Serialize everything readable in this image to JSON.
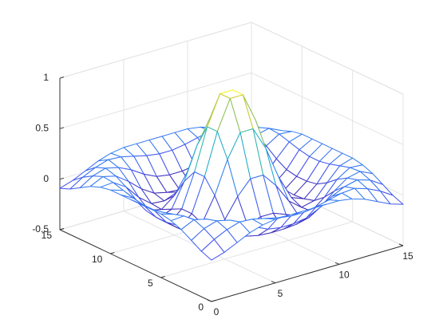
{
  "chart_data": {
    "type": "mesh",
    "x": [
      0,
      1,
      2,
      3,
      4,
      5,
      6,
      7,
      8,
      9,
      10,
      11,
      12,
      13,
      14,
      15
    ],
    "y": [
      0,
      1,
      2,
      3,
      4,
      5,
      6,
      7,
      8,
      9,
      10,
      11,
      12,
      13,
      14,
      15
    ],
    "z": [
      [
        -0.09,
        -0.05,
        0.01,
        0.07,
        0.11,
        0.13,
        0.13,
        0.13,
        0.13,
        0.13,
        0.13,
        0.11,
        0.07,
        0.01,
        -0.05,
        -0.09
      ],
      [
        -0.05,
        0.03,
        0.09,
        0.13,
        0.12,
        0.09,
        0.06,
        0.04,
        0.04,
        0.06,
        0.09,
        0.12,
        0.13,
        0.09,
        0.03,
        -0.05
      ],
      [
        0.01,
        0.09,
        0.13,
        0.1,
        0.04,
        -0.04,
        -0.1,
        -0.12,
        -0.12,
        -0.1,
        -0.04,
        0.04,
        0.1,
        0.13,
        0.09,
        0.01
      ],
      [
        0.07,
        0.13,
        0.1,
        0.01,
        -0.1,
        -0.18,
        -0.21,
        -0.22,
        -0.22,
        -0.21,
        -0.18,
        -0.1,
        0.01,
        0.1,
        0.13,
        0.07
      ],
      [
        0.11,
        0.12,
        0.04,
        -0.1,
        -0.2,
        -0.21,
        -0.16,
        -0.11,
        -0.11,
        -0.16,
        -0.21,
        -0.2,
        -0.1,
        0.04,
        0.12,
        0.11
      ],
      [
        0.13,
        0.09,
        -0.04,
        -0.18,
        -0.21,
        -0.11,
        0.08,
        0.22,
        0.22,
        0.08,
        -0.11,
        -0.21,
        -0.18,
        -0.04,
        0.09,
        0.13
      ],
      [
        0.13,
        0.06,
        -0.1,
        -0.21,
        -0.16,
        0.08,
        0.4,
        0.63,
        0.63,
        0.4,
        0.08,
        -0.16,
        -0.21,
        -0.1,
        0.06,
        0.13
      ],
      [
        0.13,
        0.04,
        -0.12,
        -0.22,
        -0.11,
        0.22,
        0.63,
        0.92,
        0.92,
        0.63,
        0.22,
        -0.11,
        -0.22,
        -0.12,
        0.04,
        0.13
      ],
      [
        0.13,
        0.04,
        -0.12,
        -0.22,
        -0.11,
        0.22,
        0.63,
        0.92,
        0.92,
        0.63,
        0.22,
        -0.11,
        -0.22,
        -0.12,
        0.04,
        0.13
      ],
      [
        0.13,
        0.06,
        -0.1,
        -0.21,
        -0.16,
        0.08,
        0.4,
        0.63,
        0.63,
        0.4,
        0.08,
        -0.16,
        -0.21,
        -0.1,
        0.06,
        0.13
      ],
      [
        0.13,
        0.09,
        -0.04,
        -0.18,
        -0.21,
        -0.11,
        0.08,
        0.22,
        0.22,
        0.08,
        -0.11,
        -0.21,
        -0.18,
        -0.04,
        0.09,
        0.13
      ],
      [
        0.11,
        0.12,
        0.04,
        -0.1,
        -0.2,
        -0.21,
        -0.16,
        -0.11,
        -0.11,
        -0.16,
        -0.21,
        -0.2,
        -0.1,
        0.04,
        0.12,
        0.11
      ],
      [
        0.07,
        0.13,
        0.1,
        0.01,
        -0.1,
        -0.18,
        -0.21,
        -0.22,
        -0.22,
        -0.21,
        -0.18,
        -0.1,
        0.01,
        0.1,
        0.13,
        0.07
      ],
      [
        0.01,
        0.09,
        0.13,
        0.1,
        0.04,
        -0.04,
        -0.1,
        -0.12,
        -0.12,
        -0.1,
        -0.04,
        0.04,
        0.1,
        0.13,
        0.09,
        0.01
      ],
      [
        -0.05,
        0.03,
        0.09,
        0.13,
        0.12,
        0.09,
        0.06,
        0.04,
        0.04,
        0.06,
        0.09,
        0.12,
        0.13,
        0.09,
        0.03,
        -0.05
      ],
      [
        -0.09,
        -0.05,
        0.01,
        0.07,
        0.11,
        0.13,
        0.13,
        0.13,
        0.13,
        0.13,
        0.13,
        0.11,
        0.07,
        0.01,
        -0.05,
        -0.09
      ]
    ],
    "xlim": [
      0,
      15
    ],
    "ylim": [
      0,
      15
    ],
    "zlim": [
      -0.5,
      1
    ],
    "xticks": [
      0,
      5,
      10,
      15
    ],
    "yticks": [
      0,
      5,
      10,
      15
    ],
    "zticks": [
      -0.5,
      0,
      0.5,
      1
    ],
    "grid": true,
    "colormap": [
      "#3e26a8",
      "#4352f0",
      "#2d8cf2",
      "#1cb0c8",
      "#4cc585",
      "#bebc38",
      "#f9fb15"
    ]
  }
}
